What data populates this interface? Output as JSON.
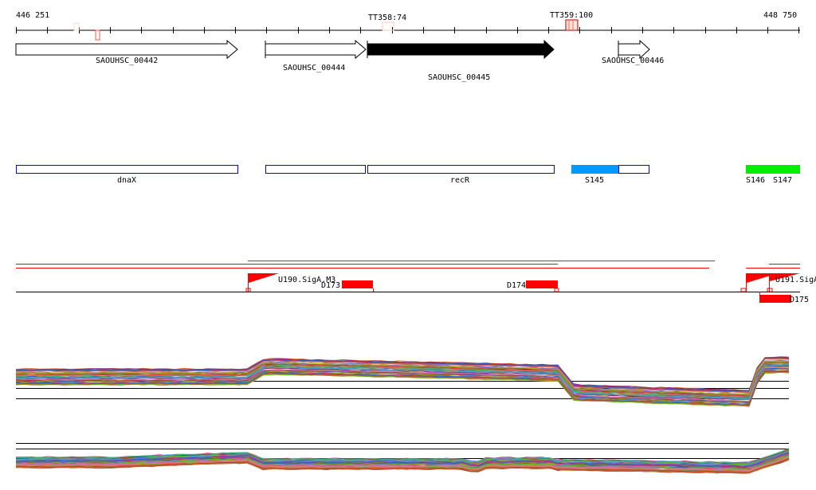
{
  "ruler": {
    "start_label": "446 251",
    "end_label": "448 750"
  },
  "terminators": [
    {
      "label": "TT358:74"
    },
    {
      "label": "TT359:100"
    }
  ],
  "genes": [
    {
      "label": "SAOUHSC_00442",
      "style": "outline"
    },
    {
      "label": "SAOUHSC_00444",
      "style": "outline"
    },
    {
      "label": "SAOUHSC_00445",
      "style": "filled"
    },
    {
      "label": "SAOUHSC_00446",
      "style": "outline"
    }
  ],
  "features": [
    {
      "label": "dnaX"
    },
    {
      "label": "recR"
    },
    {
      "label": "S145",
      "color": "#0099ff"
    },
    {
      "label": "S146",
      "color": "#00ee00"
    },
    {
      "label": "S147",
      "color": "#00ee00"
    }
  ],
  "regulation": {
    "sites": [
      {
        "label": "U190.SigA.M3"
      },
      {
        "label": "U191.SigA"
      }
    ],
    "boxes": [
      {
        "label": "D173"
      },
      {
        "label": "D174"
      },
      {
        "label": "D175"
      }
    ],
    "accent": "#ff0000"
  }
}
